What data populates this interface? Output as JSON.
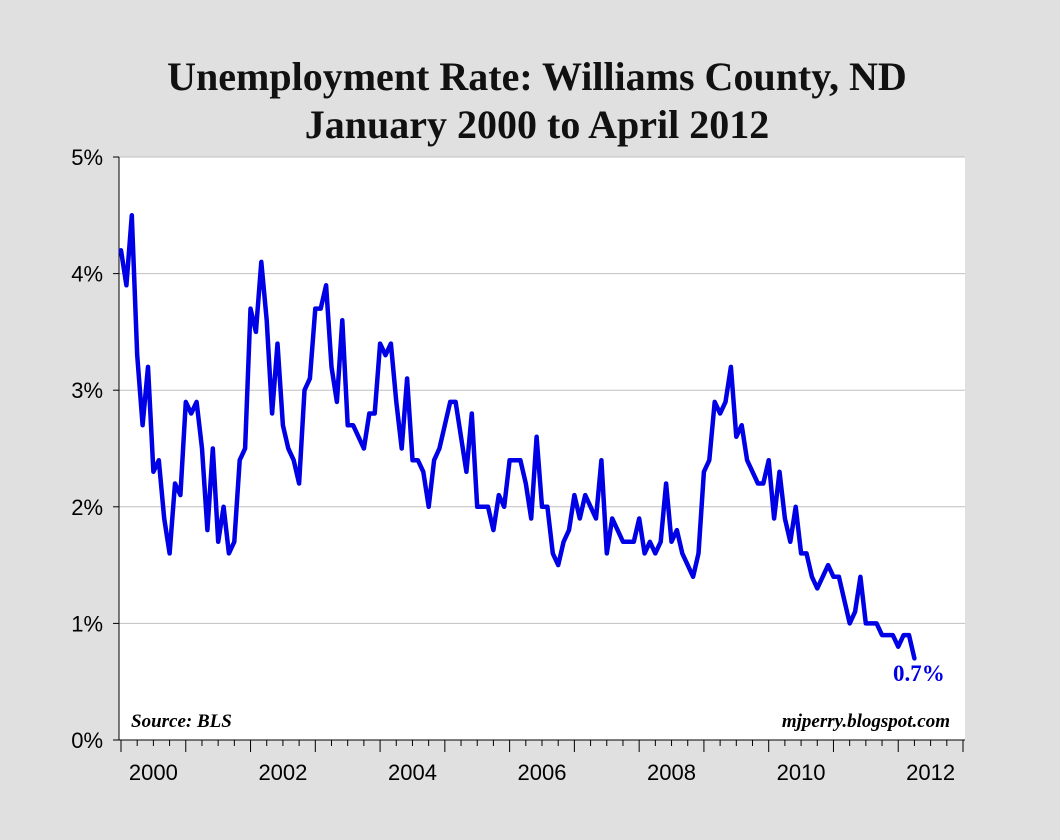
{
  "chart_data": {
    "type": "line",
    "title": "Unemployment Rate: Williams County, ND",
    "subtitle": "January 2000 to April 2012",
    "xlabel": "",
    "ylabel": "",
    "ylim": [
      0,
      5
    ],
    "xlim": [
      "2000-01",
      "2012-12"
    ],
    "y_ticks": [
      0,
      1,
      2,
      3,
      4,
      5
    ],
    "y_tick_format": "%",
    "x_tick_labels": [
      "2000",
      "2002",
      "2004",
      "2006",
      "2008",
      "2010",
      "2012"
    ],
    "grid": true,
    "legend": "none",
    "line_color": "#0000e6",
    "x": [
      "2000-01",
      "2000-02",
      "2000-03",
      "2000-04",
      "2000-05",
      "2000-06",
      "2000-07",
      "2000-08",
      "2000-09",
      "2000-10",
      "2000-11",
      "2000-12",
      "2001-01",
      "2001-02",
      "2001-03",
      "2001-04",
      "2001-05",
      "2001-06",
      "2001-07",
      "2001-08",
      "2001-09",
      "2001-10",
      "2001-11",
      "2001-12",
      "2002-01",
      "2002-02",
      "2002-03",
      "2002-04",
      "2002-05",
      "2002-06",
      "2002-07",
      "2002-08",
      "2002-09",
      "2002-10",
      "2002-11",
      "2002-12",
      "2003-01",
      "2003-02",
      "2003-03",
      "2003-04",
      "2003-05",
      "2003-06",
      "2003-07",
      "2003-08",
      "2003-09",
      "2003-10",
      "2003-11",
      "2003-12",
      "2004-01",
      "2004-02",
      "2004-03",
      "2004-04",
      "2004-05",
      "2004-06",
      "2004-07",
      "2004-08",
      "2004-09",
      "2004-10",
      "2004-11",
      "2004-12",
      "2005-01",
      "2005-02",
      "2005-03",
      "2005-04",
      "2005-05",
      "2005-06",
      "2005-07",
      "2005-08",
      "2005-09",
      "2005-10",
      "2005-11",
      "2005-12",
      "2006-01",
      "2006-02",
      "2006-03",
      "2006-04",
      "2006-05",
      "2006-06",
      "2006-07",
      "2006-08",
      "2006-09",
      "2006-10",
      "2006-11",
      "2006-12",
      "2007-01",
      "2007-02",
      "2007-03",
      "2007-04",
      "2007-05",
      "2007-06",
      "2007-07",
      "2007-08",
      "2007-09",
      "2007-10",
      "2007-11",
      "2007-12",
      "2008-01",
      "2008-02",
      "2008-03",
      "2008-04",
      "2008-05",
      "2008-06",
      "2008-07",
      "2008-08",
      "2008-09",
      "2008-10",
      "2008-11",
      "2008-12",
      "2009-01",
      "2009-02",
      "2009-03",
      "2009-04",
      "2009-05",
      "2009-06",
      "2009-07",
      "2009-08",
      "2009-09",
      "2009-10",
      "2009-11",
      "2009-12",
      "2010-01",
      "2010-02",
      "2010-03",
      "2010-04",
      "2010-05",
      "2010-06",
      "2010-07",
      "2010-08",
      "2010-09",
      "2010-10",
      "2010-11",
      "2010-12",
      "2011-01",
      "2011-02",
      "2011-03",
      "2011-04",
      "2011-05",
      "2011-06",
      "2011-07",
      "2011-08",
      "2011-09",
      "2011-10",
      "2011-11",
      "2011-12",
      "2012-01",
      "2012-02",
      "2012-03",
      "2012-04"
    ],
    "series": [
      {
        "values": [
          4.2,
          3.9,
          4.5,
          3.3,
          2.7,
          3.2,
          2.3,
          2.4,
          1.9,
          1.6,
          2.2,
          2.1,
          2.9,
          2.8,
          2.9,
          2.5,
          1.8,
          2.5,
          1.7,
          2.0,
          1.6,
          1.7,
          2.4,
          2.5,
          3.7,
          3.5,
          4.1,
          3.6,
          2.8,
          3.4,
          2.7,
          2.5,
          2.4,
          2.2,
          3.0,
          3.1,
          3.7,
          3.7,
          3.9,
          3.2,
          2.9,
          3.6,
          2.7,
          2.7,
          2.6,
          2.5,
          2.8,
          2.8,
          3.4,
          3.3,
          3.4,
          2.9,
          2.5,
          3.1,
          2.4,
          2.4,
          2.3,
          2.0,
          2.4,
          2.5,
          2.7,
          2.9,
          2.9,
          2.6,
          2.3,
          2.8,
          2.0,
          2.0,
          2.0,
          1.8,
          2.1,
          2.0,
          2.4,
          2.4,
          2.4,
          2.2,
          1.9,
          2.6,
          2.0,
          2.0,
          1.6,
          1.5,
          1.7,
          1.8,
          2.1,
          1.9,
          2.1,
          2.0,
          1.9,
          2.4,
          1.6,
          1.9,
          1.8,
          1.7,
          1.7,
          1.7,
          1.9,
          1.6,
          1.7,
          1.6,
          1.7,
          2.2,
          1.7,
          1.8,
          1.6,
          1.5,
          1.4,
          1.6,
          2.3,
          2.4,
          2.9,
          2.8,
          2.9,
          3.2,
          2.6,
          2.7,
          2.4,
          2.3,
          2.2,
          2.2,
          2.4,
          1.9,
          2.3,
          1.9,
          1.7,
          2.0,
          1.6,
          1.6,
          1.4,
          1.3,
          1.4,
          1.5,
          1.4,
          1.4,
          1.2,
          1.0,
          1.1,
          1.4,
          1.0,
          1.0,
          1.0,
          0.9,
          0.9,
          0.9,
          0.8,
          0.9,
          0.9,
          0.7
        ]
      }
    ],
    "annotations": {
      "last_value": "0.7%",
      "source": "Source: BLS",
      "credit": "mjperry.blogspot.com"
    }
  }
}
